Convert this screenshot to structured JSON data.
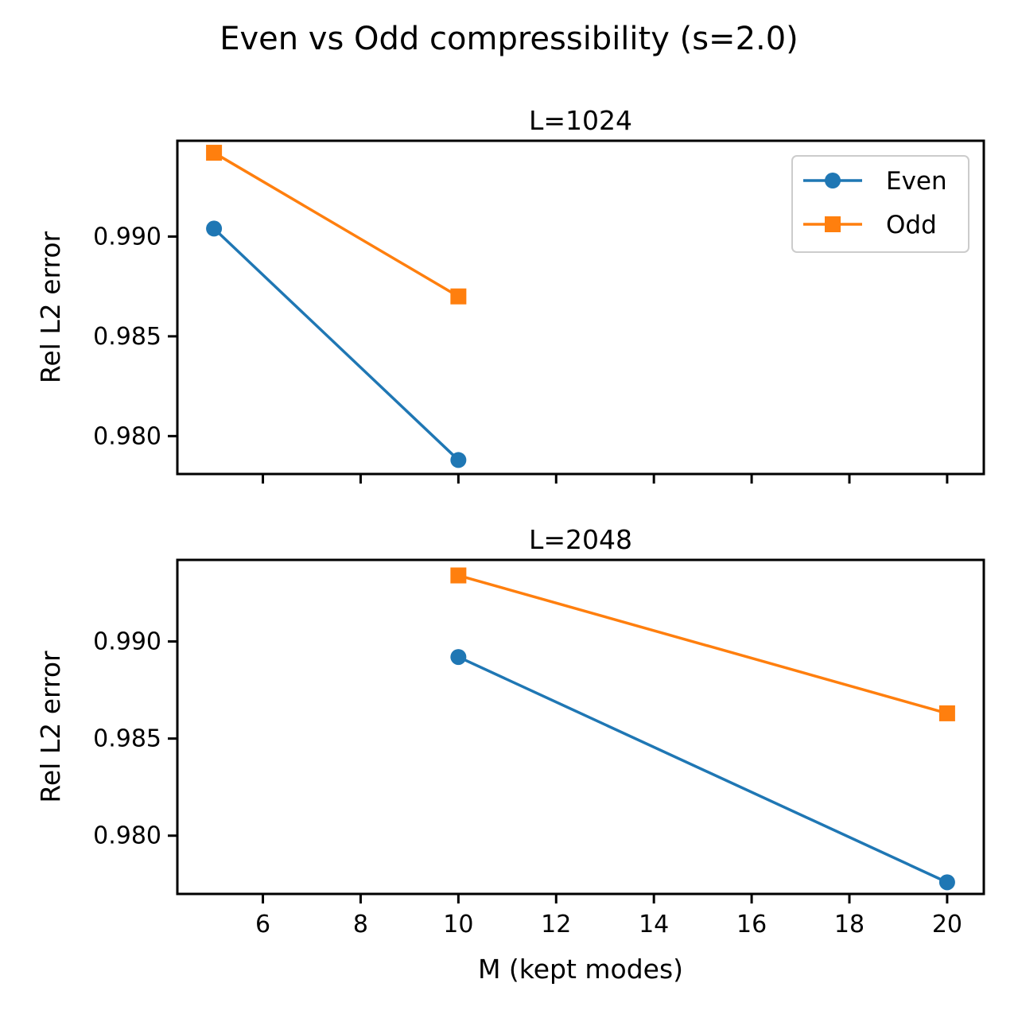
{
  "figure": {
    "suptitle": "Even vs Odd compressibility (s=2.0)"
  },
  "chart_data": [
    {
      "type": "line",
      "title": "L=1024",
      "xlabel": "",
      "ylabel": "Rel L2 error",
      "xlim": [
        4.25,
        20.75
      ],
      "ylim": [
        0.9781,
        0.9948
      ],
      "xticks": [
        6,
        8,
        10,
        12,
        14,
        16,
        18,
        20
      ],
      "xticklabels_shown": false,
      "yticks": [
        0.98,
        0.985,
        0.99
      ],
      "yticklabels": [
        "0.980",
        "0.985",
        "0.990"
      ],
      "legend": "upper right",
      "series": [
        {
          "name": "Even",
          "marker": "circle",
          "color": "#1f77b4",
          "x": [
            5,
            10
          ],
          "y": [
            0.9904,
            0.9788
          ]
        },
        {
          "name": "Odd",
          "marker": "square",
          "color": "#ff7f0e",
          "x": [
            5,
            10
          ],
          "y": [
            0.9942,
            0.987
          ]
        }
      ]
    },
    {
      "type": "line",
      "title": "L=2048",
      "xlabel": "M (kept modes)",
      "ylabel": "Rel L2 error",
      "xlim": [
        4.25,
        20.75
      ],
      "ylim": [
        0.977,
        0.9942
      ],
      "xticks": [
        6,
        8,
        10,
        12,
        14,
        16,
        18,
        20
      ],
      "xticklabels": [
        "6",
        "8",
        "10",
        "12",
        "14",
        "16",
        "18",
        "20"
      ],
      "xticklabels_shown": true,
      "yticks": [
        0.98,
        0.985,
        0.99
      ],
      "yticklabels": [
        "0.980",
        "0.985",
        "0.990"
      ],
      "legend": "none",
      "series": [
        {
          "name": "Even",
          "marker": "circle",
          "color": "#1f77b4",
          "x": [
            10,
            20
          ],
          "y": [
            0.9892,
            0.9776
          ]
        },
        {
          "name": "Odd",
          "marker": "square",
          "color": "#ff7f0e",
          "x": [
            10,
            20
          ],
          "y": [
            0.9934,
            0.9863
          ]
        }
      ]
    }
  ]
}
